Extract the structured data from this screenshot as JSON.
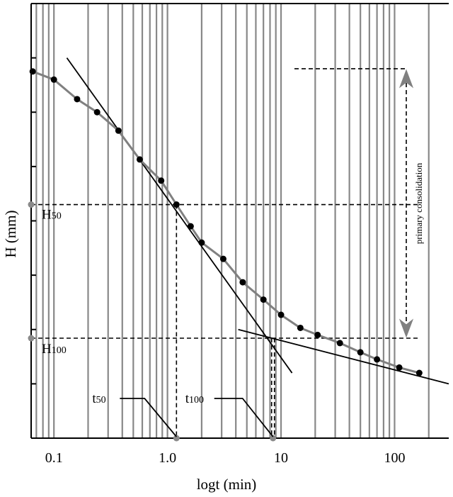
{
  "chart_data": {
    "type": "scatter",
    "title": "",
    "xlabel": "logt (min)",
    "ylabel": "H (mm)",
    "x_scale": "log",
    "xlim": [
      0.063,
      300
    ],
    "ylim": [
      0,
      8
    ],
    "xticks": [
      0.1,
      1.0,
      10,
      100
    ],
    "xtick_labels": [
      "0.1",
      "1.0",
      "10",
      "100"
    ],
    "ytick_values": [
      1,
      2,
      3,
      4,
      5,
      6,
      7
    ],
    "grid": "vertical",
    "series": [
      {
        "marker": "filled-circle",
        "connected": true,
        "x": [
          0.065,
          0.1,
          0.16,
          0.24,
          0.37,
          0.57,
          0.88,
          1.2,
          1.6,
          2.0,
          3.1,
          4.6,
          7.0,
          10.0,
          14.8,
          21.0,
          33.0,
          50.0,
          70.0,
          110.0,
          165.0
        ],
        "y": [
          6.75,
          6.6,
          6.24,
          6.0,
          5.66,
          5.13,
          4.74,
          4.3,
          3.9,
          3.6,
          3.3,
          2.87,
          2.55,
          2.27,
          2.03,
          1.9,
          1.75,
          1.58,
          1.45,
          1.3,
          1.2
        ]
      }
    ],
    "reference_lines": [
      {
        "kind": "tangent",
        "x": [
          0.13,
          12.5
        ],
        "y": [
          7.0,
          1.2
        ]
      },
      {
        "kind": "asymptote",
        "x": [
          4.2,
          300.0
        ],
        "y": [
          2.0,
          1.0
        ]
      }
    ],
    "annotations": {
      "H50": {
        "label": "H50",
        "label_main": "H",
        "label_sub": "50",
        "y": 4.3
      },
      "H100": {
        "label": "H100",
        "label_main": "H",
        "label_sub": "100",
        "y": 1.84
      },
      "t50": {
        "label": "t50",
        "label_main": "t",
        "label_sub": "50",
        "x": 1.2
      },
      "t100": {
        "label": "t100",
        "label_main": "t",
        "label_sub": "100",
        "x": 8.5
      },
      "primary_consolidation": {
        "label": "primary consolidation",
        "y_top": 6.8,
        "y_bottom": 1.84
      }
    },
    "colors": {
      "axes": "#000000",
      "grid": "#888888",
      "curve": "#808080",
      "points": "#000000",
      "guide_points": "#8a8a8a"
    }
  }
}
